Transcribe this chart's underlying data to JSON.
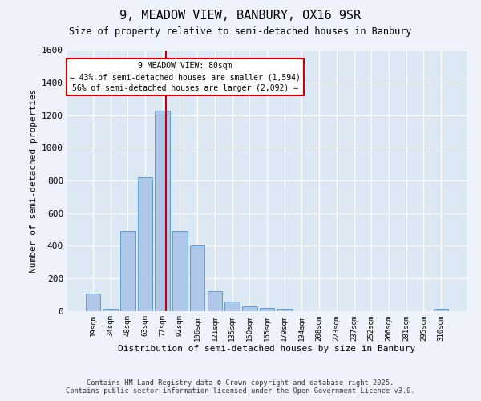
{
  "title": "9, MEADOW VIEW, BANBURY, OX16 9SR",
  "subtitle": "Size of property relative to semi-detached houses in Banbury",
  "xlabel": "Distribution of semi-detached houses by size in Banbury",
  "ylabel": "Number of semi-detached properties",
  "categories": [
    "19sqm",
    "34sqm",
    "48sqm",
    "63sqm",
    "77sqm",
    "92sqm",
    "106sqm",
    "121sqm",
    "135sqm",
    "150sqm",
    "165sqm",
    "179sqm",
    "194sqm",
    "208sqm",
    "223sqm",
    "237sqm",
    "252sqm",
    "266sqm",
    "281sqm",
    "295sqm",
    "310sqm"
  ],
  "values": [
    105,
    10,
    490,
    820,
    1230,
    490,
    400,
    120,
    55,
    25,
    15,
    10,
    0,
    0,
    0,
    0,
    0,
    0,
    0,
    0,
    10
  ],
  "bar_color": "#aec6e8",
  "bar_edge_color": "#5a9fd4",
  "bin_centers_sqm": [
    19,
    34,
    48,
    63,
    77,
    92,
    106,
    121,
    135,
    150,
    165,
    179,
    194,
    208,
    223,
    237,
    252,
    266,
    281,
    295,
    310
  ],
  "property_sqm": 80,
  "property_label": "9 MEADOW VIEW: 80sqm",
  "annotation_smaller": "← 43% of semi-detached houses are smaller (1,594)",
  "annotation_larger": "56% of semi-detached houses are larger (2,092) →",
  "vline_color": "#cc0000",
  "ylim": [
    0,
    1600
  ],
  "yticks": [
    0,
    200,
    400,
    600,
    800,
    1000,
    1200,
    1400,
    1600
  ],
  "background_color": "#dde8f5",
  "grid_color": "#ffffff",
  "footer1": "Contains HM Land Registry data © Crown copyright and database right 2025.",
  "footer2": "Contains public sector information licensed under the Open Government Licence v3.0."
}
